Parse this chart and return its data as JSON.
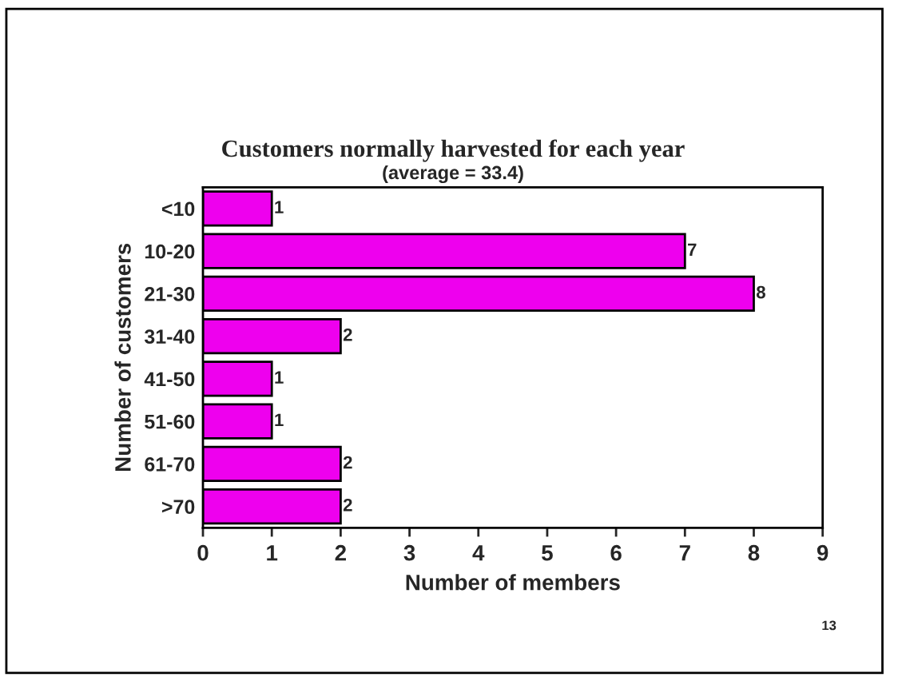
{
  "chart_data": {
    "type": "bar",
    "orientation": "horizontal",
    "title": "Customers normally harvested for each year",
    "subtitle": "(average = 33.4)",
    "xlabel": "Number of members",
    "ylabel": "Number of customers",
    "categories": [
      "<10",
      "10-20",
      "21-30",
      "31-40",
      "41-50",
      "51-60",
      "61-70",
      ">70"
    ],
    "values": [
      1,
      7,
      8,
      2,
      1,
      1,
      2,
      2
    ],
    "color": "#ee00ee",
    "xlim": [
      0,
      9
    ],
    "xticks": [
      0,
      1,
      2,
      3,
      4,
      5,
      6,
      7,
      8,
      9
    ],
    "grid": false,
    "legend": false,
    "data_labels": true,
    "annotations": [
      "13"
    ]
  }
}
